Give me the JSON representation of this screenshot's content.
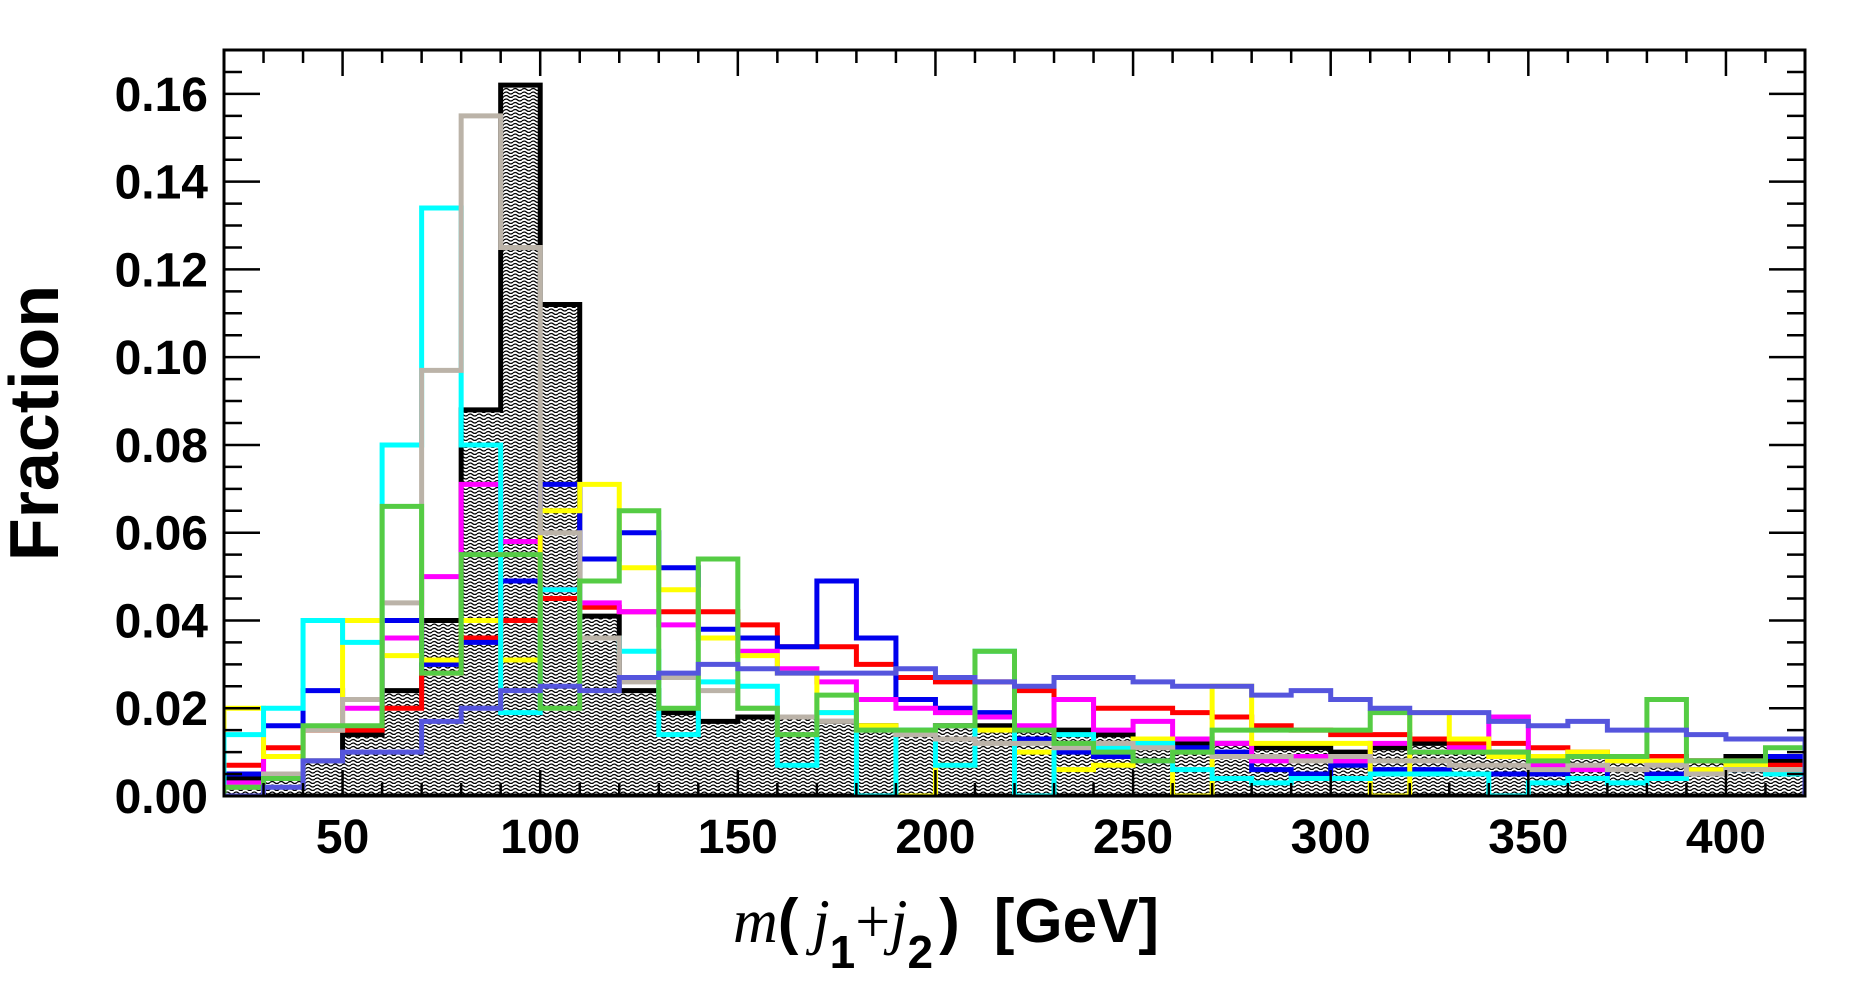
{
  "chart_data": {
    "type": "step-histogram",
    "title": "",
    "xlabel": {
      "var": "m",
      "open": "(",
      "j": "j",
      "sub1": "1",
      "plus": "+",
      "sub2": "2",
      "close": ")",
      "unit": "[GeV]"
    },
    "ylabel": "Fraction",
    "xlim": [
      20,
      420
    ],
    "ylim": [
      0,
      0.17
    ],
    "bin_width": 10,
    "x_ticks": [
      50,
      100,
      150,
      200,
      250,
      300,
      350,
      400
    ],
    "x_tick_labels": [
      "50",
      "100",
      "150",
      "200",
      "250",
      "300",
      "350",
      "400"
    ],
    "y_ticks": [
      0,
      0.02,
      0.04,
      0.06,
      0.08,
      0.1,
      0.12,
      0.14,
      0.16
    ],
    "y_tick_labels": [
      "0.00",
      "0.02",
      "0.04",
      "0.06",
      "0.08",
      "0.10",
      "0.12",
      "0.14",
      "0.16"
    ],
    "filled_series": {
      "name": "black-hatched",
      "color": "#000000",
      "fill": "hatched",
      "values": [
        0.004,
        0.004,
        0.008,
        0.014,
        0.024,
        0.04,
        0.088,
        0.162,
        0.112,
        0.041,
        0.024,
        0.019,
        0.017,
        0.018,
        0.018,
        0.017,
        0.016,
        0.015,
        0.016,
        0.016,
        0.015,
        0.015,
        0.014,
        0.013,
        0.012,
        0.012,
        0.011,
        0.011,
        0.01,
        0.011,
        0.012,
        0.011,
        0.01,
        0.009,
        0.009,
        0.008,
        0.009,
        0.008,
        0.009,
        0.008
      ]
    },
    "series": [
      {
        "name": "red",
        "color": "#ff0000",
        "values": [
          0.007,
          0.011,
          0.015,
          0.015,
          0.02,
          0.028,
          0.036,
          0.04,
          0.045,
          0.043,
          0.042,
          0.042,
          0.042,
          0.039,
          0.034,
          0.034,
          0.03,
          0.027,
          0.026,
          0.026,
          0.024,
          0.022,
          0.02,
          0.02,
          0.019,
          0.018,
          0.016,
          0.015,
          0.014,
          0.014,
          0.013,
          0.012,
          0.012,
          0.011,
          0.01,
          0.009,
          0.009,
          0.008,
          0.008,
          0.007
        ]
      },
      {
        "name": "blue",
        "color": "#0000ee",
        "values": [
          0.005,
          0.016,
          0.024,
          0.022,
          0.04,
          0.03,
          0.035,
          0.049,
          0.071,
          0.054,
          0.06,
          0.052,
          0.038,
          0.036,
          0.034,
          0.049,
          0.036,
          0.022,
          0.02,
          0.019,
          0.013,
          0.01,
          0.009,
          0.008,
          0.011,
          0.01,
          0.006,
          0.005,
          0.007,
          0.006,
          0.006,
          0.005,
          0.005,
          0.005,
          0.004,
          0.008,
          0.005,
          0.006,
          0.006,
          0.009
        ]
      },
      {
        "name": "magenta",
        "color": "#ff00ff",
        "values": [
          0.003,
          0.009,
          0.015,
          0.02,
          0.036,
          0.05,
          0.071,
          0.058,
          0.047,
          0.044,
          0.042,
          0.039,
          0.036,
          0.033,
          0.029,
          0.026,
          0.022,
          0.02,
          0.019,
          0.018,
          0.016,
          0.022,
          0.015,
          0.017,
          0.013,
          0.012,
          0.008,
          0.009,
          0.008,
          0.012,
          0.01,
          0.011,
          0.018,
          0.007,
          0.006,
          0.009,
          0.008,
          0.005,
          0.007,
          0.006
        ]
      },
      {
        "name": "yellow",
        "color": "#ffff00",
        "values": [
          0.02,
          0.009,
          0.015,
          0.04,
          0.032,
          0.031,
          0.04,
          0.031,
          0.065,
          0.071,
          0.052,
          0.047,
          0.036,
          0.032,
          0.028,
          0.019,
          0.016,
          0.0,
          0.007,
          0.015,
          0.01,
          0.006,
          0.007,
          0.013,
          0.0,
          0.025,
          0.012,
          0.012,
          0.012,
          0.0,
          0.019,
          0.013,
          0.009,
          0.009,
          0.01,
          0.008,
          0.008,
          0.006,
          0.007,
          0.006
        ]
      },
      {
        "name": "cyan",
        "color": "#00ffff",
        "values": [
          0.014,
          0.02,
          0.04,
          0.035,
          0.08,
          0.134,
          0.08,
          0.019,
          0.047,
          0.036,
          0.033,
          0.014,
          0.026,
          0.025,
          0.007,
          0.019,
          0.0,
          0.015,
          0.007,
          0.033,
          0.0,
          0.014,
          0.011,
          0.012,
          0.006,
          0.004,
          0.003,
          0.004,
          0.004,
          0.005,
          0.005,
          0.005,
          0.0,
          0.003,
          0.004,
          0.003,
          0.004,
          0.005,
          0.006,
          0.005
        ]
      },
      {
        "name": "gray",
        "color": "#bbb3a8",
        "values": [
          0.002,
          0.005,
          0.015,
          0.022,
          0.044,
          0.097,
          0.155,
          0.125,
          0.06,
          0.036,
          0.026,
          0.027,
          0.024,
          0.02,
          0.018,
          0.017,
          0.015,
          0.014,
          0.013,
          0.012,
          0.012,
          0.011,
          0.012,
          0.011,
          0.01,
          0.009,
          0.009,
          0.008,
          0.009,
          0.008,
          0.008,
          0.007,
          0.007,
          0.006,
          0.007,
          0.006,
          0.007,
          0.005,
          0.006,
          0.006
        ]
      },
      {
        "name": "green",
        "color": "#55cc44",
        "values": [
          0.002,
          0.004,
          0.016,
          0.016,
          0.066,
          0.028,
          0.055,
          0.055,
          0.02,
          0.049,
          0.065,
          0.02,
          0.054,
          0.02,
          0.014,
          0.023,
          0.015,
          0.015,
          0.016,
          0.033,
          0.015,
          0.012,
          0.01,
          0.008,
          0.01,
          0.015,
          0.015,
          0.015,
          0.015,
          0.019,
          0.01,
          0.01,
          0.01,
          0.008,
          0.009,
          0.009,
          0.022,
          0.008,
          0.008,
          0.011
        ]
      },
      {
        "name": "slate-blue",
        "color": "#5555dd",
        "values": [
          0.0,
          0.002,
          0.008,
          0.01,
          0.01,
          0.017,
          0.02,
          0.024,
          0.025,
          0.024,
          0.027,
          0.028,
          0.03,
          0.029,
          0.028,
          0.028,
          0.028,
          0.029,
          0.027,
          0.026,
          0.025,
          0.027,
          0.027,
          0.026,
          0.025,
          0.025,
          0.023,
          0.024,
          0.022,
          0.02,
          0.019,
          0.019,
          0.017,
          0.016,
          0.017,
          0.015,
          0.015,
          0.014,
          0.013,
          0.013
        ]
      }
    ]
  }
}
